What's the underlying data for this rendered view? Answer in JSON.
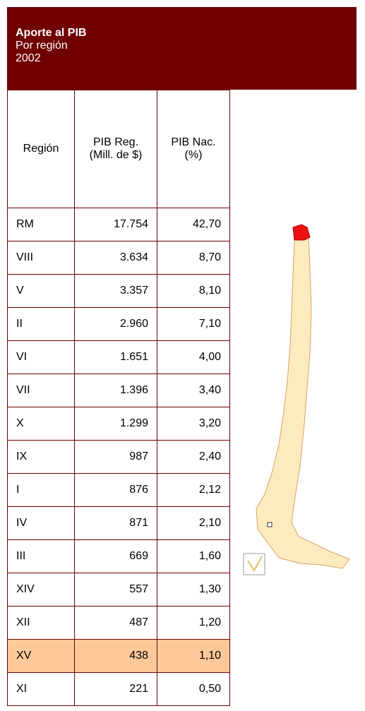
{
  "header": {
    "title": "Aporte al PIB",
    "subtitle": "Por región",
    "year": "2002"
  },
  "table": {
    "columns": [
      "Región",
      "PIB Reg. (Mill. de $)",
      "PIB Nac. (%)"
    ],
    "highlight_row": 13,
    "rows": [
      [
        "RM",
        "17.754",
        "42,70"
      ],
      [
        "VIII",
        "3.634",
        "8,70"
      ],
      [
        "V",
        "3.357",
        "8,10"
      ],
      [
        "II",
        "2.960",
        "7,10"
      ],
      [
        "VI",
        "1.651",
        "4,00"
      ],
      [
        "VII",
        "1.396",
        "3,40"
      ],
      [
        "X",
        "1.299",
        "3,20"
      ],
      [
        "IX",
        "987",
        "2,40"
      ],
      [
        "I",
        "876",
        "2,12"
      ],
      [
        "IV",
        "871",
        "2,10"
      ],
      [
        "III",
        "669",
        "1,60"
      ],
      [
        "XIV",
        "557",
        "1,30"
      ],
      [
        "XII",
        "487",
        "1,20"
      ],
      [
        "XV",
        "438",
        "1,10"
      ],
      [
        "XI",
        "221",
        "0,50"
      ]
    ]
  }
}
